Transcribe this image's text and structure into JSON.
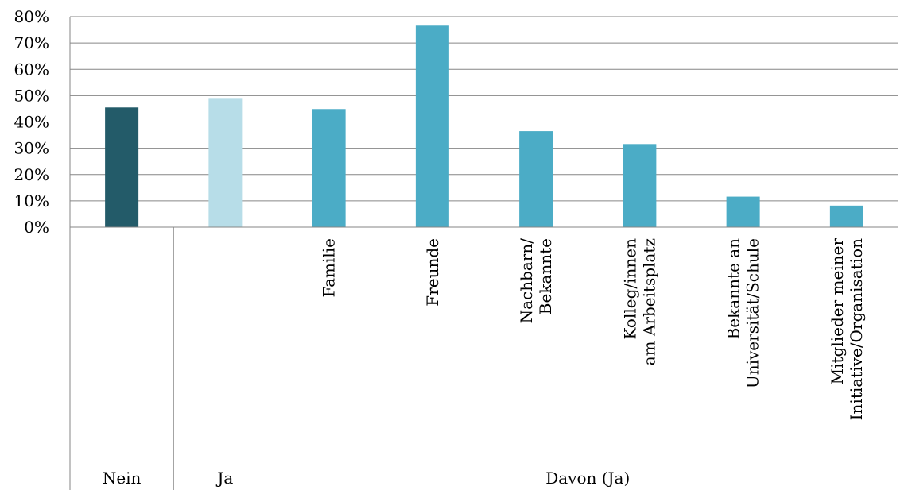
{
  "chart_data": {
    "type": "bar",
    "ylim": [
      0,
      80
    ],
    "y_ticks": [
      "0%",
      "10%",
      "20%",
      "30%",
      "40%",
      "50%",
      "60%",
      "70%",
      "80%"
    ],
    "grid": true,
    "bars": [
      {
        "label": "",
        "value": 45.5,
        "color": "#235b69"
      },
      {
        "label": "",
        "value": 48.8,
        "color": "#b7dde8"
      },
      {
        "label": "Familie",
        "value": 44.9,
        "color": "#4bacc6"
      },
      {
        "label": "Freunde",
        "value": 76.6,
        "color": "#4bacc6"
      },
      {
        "label": "Nachbarn/\nBekannte",
        "value": 36.5,
        "color": "#4bacc6"
      },
      {
        "label": "Kolleg/innen\nam Arbeitsplatz",
        "value": 31.6,
        "color": "#4bacc6"
      },
      {
        "label": "Bekannte an\nUniversität/Schule",
        "value": 11.6,
        "color": "#4bacc6"
      },
      {
        "label": "Mitglieder meiner\nInitiative/Organisation",
        "value": 8.2,
        "color": "#4bacc6"
      }
    ],
    "groups": [
      {
        "label": "Nein",
        "from": 0,
        "to": 0
      },
      {
        "label": "Ja",
        "from": 1,
        "to": 1
      },
      {
        "label": "Davon (Ja)",
        "from": 2,
        "to": 7
      }
    ]
  }
}
